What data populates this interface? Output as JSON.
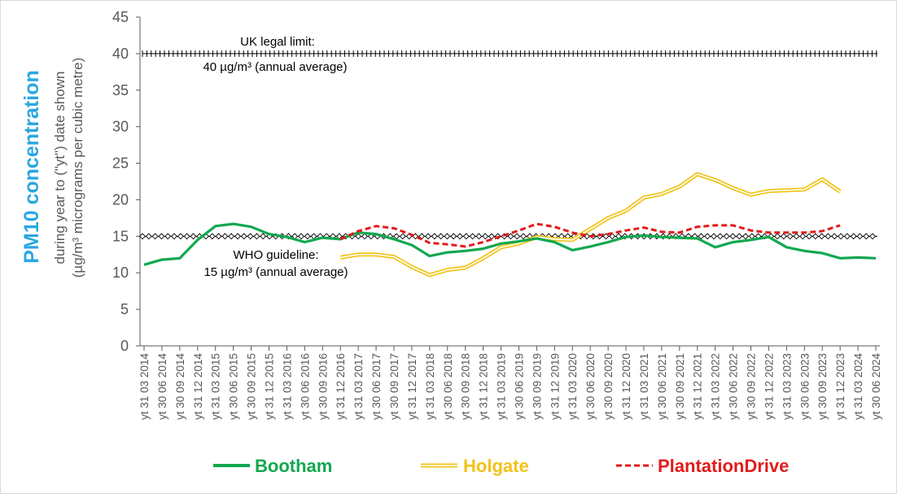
{
  "chart_data": {
    "type": "line",
    "ylabel_main": "PM10 concentration",
    "ylabel_sub1": "during year to (\"yt\") date shown",
    "ylabel_sub2": "(µg/m³ micrograms per cubic metre)",
    "ylim": [
      0,
      45
    ],
    "yticks": [
      0,
      5,
      10,
      15,
      20,
      25,
      30,
      35,
      40,
      45
    ],
    "grid": false,
    "legend_position": "bottom",
    "colors": {
      "bootham": "#12a84f",
      "holgate": "#f2c318",
      "plantation": "#e31b1b",
      "ylabel_main": "#2aa7e0"
    },
    "x_labels": [
      "yt 31 03 2014",
      "yt 30 06 2014",
      "yt 30 09 2014",
      "yt 31 12 2014",
      "yt 31 03 2015",
      "yt 30 06 2015",
      "yt 30 09 2015",
      "yt 31 12 2015",
      "yt 31 03 2016",
      "yt 30 06 2016",
      "yt 30 09 2016",
      "yt 31 12 2016",
      "yt 31 03 2017",
      "yt 30 06 2017",
      "yt 30 09 2017",
      "yt 31 12 2017",
      "yt 31 03 2018",
      "yt 30 06 2018",
      "yt 30 09 2018",
      "yt 31 12 2018",
      "yt 31 03 2019",
      "yt 30 06 2019",
      "yt 30 09 2019",
      "yt 31 12 2019",
      "yt 31 03 2020",
      "yt 30 06 2020",
      "yt 30 09 2020",
      "yt 31 12 2020",
      "yt 31 03 2021",
      "yt 30 06 2021",
      "yt 30 09 2021",
      "yt 31 12 2021",
      "yt 31 03 2022",
      "yt 30 06 2022",
      "yt 30 09 2022",
      "yt 31 12 2022",
      "yt 31 03 2023",
      "yt 30 06 2023",
      "yt 30 09 2023",
      "yt 31 12 2023",
      "yt 31 03 2024",
      "yt 30 06 2024"
    ],
    "reference_lines": [
      {
        "id": "uk",
        "value": 40,
        "label_line1": "UK legal limit:",
        "label_line2": "40 µg/m³ (annual average)"
      },
      {
        "id": "who",
        "value": 15,
        "label_line1": "WHO guideline:",
        "label_line2": "15 µg/m³ (annual average)"
      }
    ],
    "series": [
      {
        "name": "Bootham",
        "key": "bootham",
        "start_index": 0,
        "values": [
          11.1,
          11.8,
          12.0,
          14.5,
          16.4,
          16.7,
          16.3,
          15.3,
          14.9,
          14.2,
          14.8,
          14.6,
          15.5,
          15.3,
          14.6,
          13.8,
          12.3,
          12.8,
          13.0,
          13.3,
          14.0,
          14.3,
          14.7,
          14.2,
          13.1,
          13.6,
          14.2,
          14.9,
          15.1,
          14.9,
          14.8,
          14.7,
          13.5,
          14.2,
          14.5,
          14.9,
          13.5,
          13.0,
          12.7,
          12.0,
          12.1,
          12.0
        ]
      },
      {
        "name": "Holgate",
        "key": "holgate",
        "start_index": 11,
        "values": [
          12.1,
          12.5,
          12.5,
          12.2,
          10.8,
          9.7,
          10.4,
          10.7,
          12.0,
          13.5,
          14.0,
          14.9,
          14.6,
          14.5,
          16.0,
          17.5,
          18.5,
          20.3,
          20.8,
          21.8,
          23.5,
          22.7,
          21.6,
          20.7,
          21.2,
          21.3,
          21.4,
          22.8,
          21.1
        ]
      },
      {
        "name": "PlantationDrive",
        "key": "plantation",
        "start_index": 11,
        "values": [
          14.6,
          15.7,
          16.4,
          16.1,
          15.2,
          14.1,
          13.9,
          13.6,
          14.2,
          15.0,
          15.8,
          16.7,
          16.3,
          15.5,
          15.0,
          15.3,
          15.8,
          16.2,
          15.6,
          15.5,
          16.3,
          16.5,
          16.5,
          15.8,
          15.5,
          15.5,
          15.5,
          15.7,
          16.5
        ]
      }
    ]
  }
}
